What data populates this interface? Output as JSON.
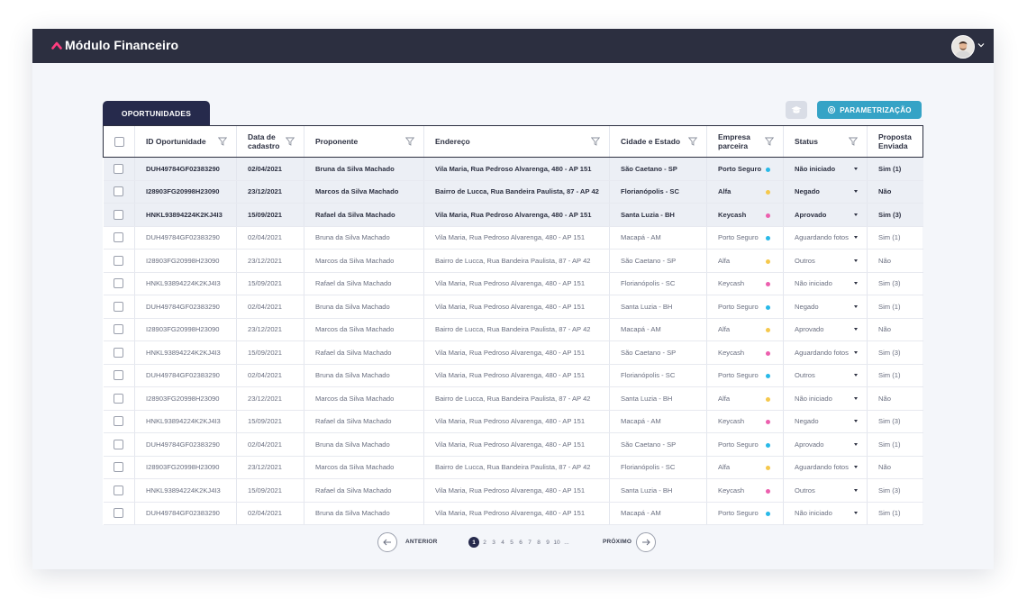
{
  "app": {
    "title": "Módulo Financeiro"
  },
  "tab": {
    "label": "OPORTUNIDADES"
  },
  "toolbar": {
    "param_label": "PARAMETRIZAÇÃO"
  },
  "columns": [
    "",
    "ID Oportunidade",
    "Data de cadastro",
    "Proponente",
    "Endereço",
    "Cidade e Estado",
    "Empresa parceira",
    "Status",
    "Proposta Enviada"
  ],
  "partner_colors": {
    "Porto Seguro": "#28b9e8",
    "Alfa": "#f5c84c",
    "Keycash": "#ec5fae"
  },
  "rows": [
    {
      "id": "DUH49784GF02383290",
      "date": "02/04/2021",
      "proponent": "Bruna da Silva Machado",
      "address": "Vila Maria, Rua Pedroso Alvarenga, 480 - AP 151",
      "city": "São Caetano - SP",
      "partner": "Porto Seguro",
      "status": "Não iniciado",
      "sent": "Sim (1)",
      "highlight": true
    },
    {
      "id": "I28903FG20998H23090",
      "date": "23/12/2021",
      "proponent": "Marcos da Silva Machado",
      "address": "Bairro de Lucca, Rua Bandeira Paulista, 87 - AP 42",
      "city": "Florianópolis - SC",
      "partner": "Alfa",
      "status": "Negado",
      "sent": "Não",
      "highlight": true
    },
    {
      "id": "HNKL93894224K2KJ4I3",
      "date": "15/09/2021",
      "proponent": "Rafael da Silva Machado",
      "address": "Vila Maria, Rua Pedroso Alvarenga, 480 - AP 151",
      "city": "Santa Luzia - BH",
      "partner": "Keycash",
      "status": "Aprovado",
      "sent": "Sim (3)",
      "highlight": true
    },
    {
      "id": "DUH49784GF02383290",
      "date": "02/04/2021",
      "proponent": "Bruna da Silva Machado",
      "address": "Vila Maria, Rua Pedroso Alvarenga, 480 - AP 151",
      "city": "Macapá - AM",
      "partner": "Porto Seguro",
      "status": "Aguardando fotos",
      "sent": "Sim (1)",
      "highlight": false
    },
    {
      "id": "I28903FG20998H23090",
      "date": "23/12/2021",
      "proponent": "Marcos da Silva Machado",
      "address": "Bairro de Lucca, Rua Bandeira Paulista, 87 - AP 42",
      "city": "São Caetano - SP",
      "partner": "Alfa",
      "status": "Outros",
      "sent": "Não",
      "highlight": false
    },
    {
      "id": "HNKL93894224K2KJ4I3",
      "date": "15/09/2021",
      "proponent": "Rafael da Silva Machado",
      "address": "Vila Maria, Rua Pedroso Alvarenga, 480 - AP 151",
      "city": "Florianópolis - SC",
      "partner": "Keycash",
      "status": "Não iniciado",
      "sent": "Sim (3)",
      "highlight": false
    },
    {
      "id": "DUH49784GF02383290",
      "date": "02/04/2021",
      "proponent": "Bruna da Silva Machado",
      "address": "Vila Maria, Rua Pedroso Alvarenga, 480 - AP 151",
      "city": "Santa Luzia - BH",
      "partner": "Porto Seguro",
      "status": "Negado",
      "sent": "Sim (1)",
      "highlight": false
    },
    {
      "id": "I28903FG20998H23090",
      "date": "23/12/2021",
      "proponent": "Marcos da Silva Machado",
      "address": "Bairro de Lucca, Rua Bandeira Paulista, 87 - AP 42",
      "city": "Macapá - AM",
      "partner": "Alfa",
      "status": "Aprovado",
      "sent": "Não",
      "highlight": false
    },
    {
      "id": "HNKL93894224K2KJ4I3",
      "date": "15/09/2021",
      "proponent": "Rafael da Silva Machado",
      "address": "Vila Maria, Rua Pedroso Alvarenga, 480 - AP 151",
      "city": "São Caetano - SP",
      "partner": "Keycash",
      "status": "Aguardando fotos",
      "sent": "Sim (3)",
      "highlight": false
    },
    {
      "id": "DUH49784GF02383290",
      "date": "02/04/2021",
      "proponent": "Bruna da Silva Machado",
      "address": "Vila Maria, Rua Pedroso Alvarenga, 480 - AP 151",
      "city": "Florianópolis - SC",
      "partner": "Porto Seguro",
      "status": "Outros",
      "sent": "Sim (1)",
      "highlight": false
    },
    {
      "id": "I28903FG20998H23090",
      "date": "23/12/2021",
      "proponent": "Marcos da Silva Machado",
      "address": "Bairro de Lucca, Rua Bandeira Paulista, 87 - AP 42",
      "city": "Santa Luzia - BH",
      "partner": "Alfa",
      "status": "Não iniciado",
      "sent": "Não",
      "highlight": false
    },
    {
      "id": "HNKL93894224K2KJ4I3",
      "date": "15/09/2021",
      "proponent": "Rafael da Silva Machado",
      "address": "Vila Maria, Rua Pedroso Alvarenga, 480 - AP 151",
      "city": "Macapá - AM",
      "partner": "Keycash",
      "status": "Negado",
      "sent": "Sim (3)",
      "highlight": false
    },
    {
      "id": "DUH49784GF02383290",
      "date": "02/04/2021",
      "proponent": "Bruna da Silva Machado",
      "address": "Vila Maria, Rua Pedroso Alvarenga, 480 - AP 151",
      "city": "São Caetano - SP",
      "partner": "Porto Seguro",
      "status": "Aprovado",
      "sent": "Sim (1)",
      "highlight": false
    },
    {
      "id": "I28903FG20998H23090",
      "date": "23/12/2021",
      "proponent": "Marcos da Silva Machado",
      "address": "Bairro de Lucca, Rua Bandeira Paulista, 87 - AP 42",
      "city": "Florianópolis - SC",
      "partner": "Alfa",
      "status": "Aguardando fotos",
      "sent": "Não",
      "highlight": false
    },
    {
      "id": "HNKL93894224K2KJ4I3",
      "date": "15/09/2021",
      "proponent": "Rafael da Silva Machado",
      "address": "Vila Maria, Rua Pedroso Alvarenga, 480 - AP 151",
      "city": "Santa Luzia - BH",
      "partner": "Keycash",
      "status": "Outros",
      "sent": "Sim (3)",
      "highlight": false
    },
    {
      "id": "DUH49784GF02383290",
      "date": "02/04/2021",
      "proponent": "Bruna da Silva Machado",
      "address": "Vila Maria, Rua Pedroso Alvarenga, 480 - AP 151",
      "city": "Macapá - AM",
      "partner": "Porto Seguro",
      "status": "Não iniciado",
      "sent": "Sim (1)",
      "highlight": false
    }
  ],
  "pagination": {
    "prev_label": "ANTERIOR",
    "next_label": "PRÓXIMO",
    "pages": [
      "1",
      "2",
      "3",
      "4",
      "5",
      "6",
      "7",
      "8",
      "9",
      "10",
      "..."
    ],
    "current": "1"
  }
}
